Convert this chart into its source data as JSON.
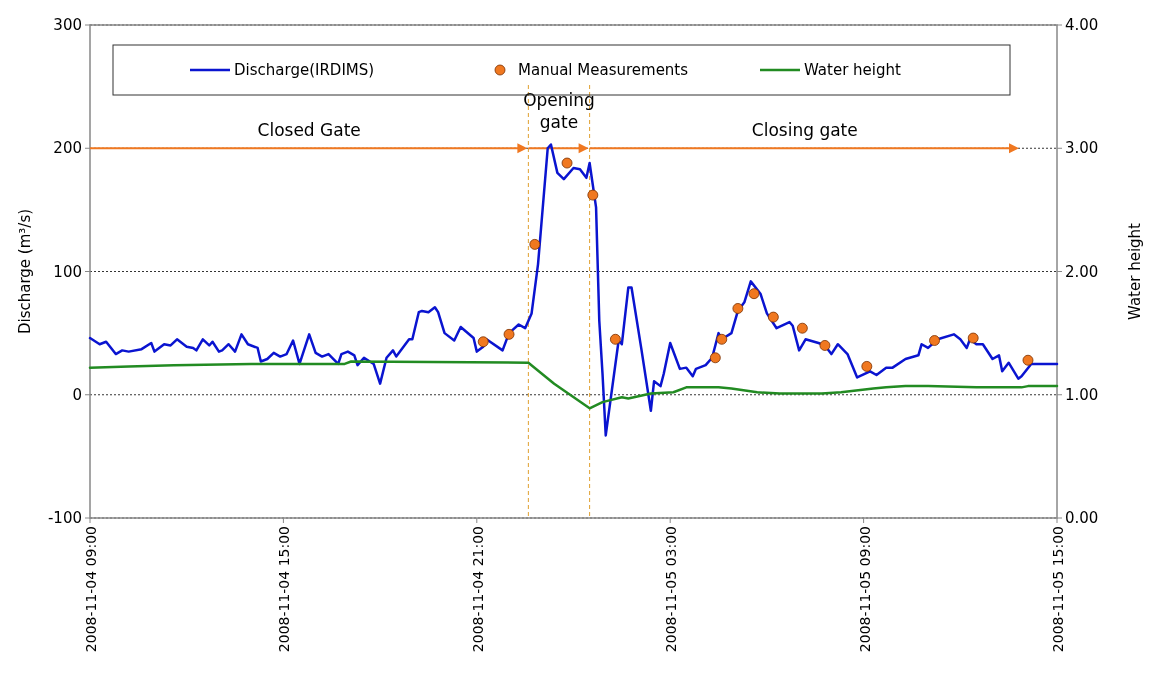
{
  "chart_data": {
    "type": "line",
    "xlim": [
      "2008-11-04T09:00",
      "2008-11-05T15:00"
    ],
    "xticks": [
      {
        "value": "2008-11-04T09:00",
        "label": "2008-11-04 09:00"
      },
      {
        "value": "2008-11-04T15:00",
        "label": "2008-11-04 15:00"
      },
      {
        "value": "2008-11-04T21:00",
        "label": "2008-11-04 21:00"
      },
      {
        "value": "2008-11-05T03:00",
        "label": "2008-11-05 03:00"
      },
      {
        "value": "2008-11-05T09:00",
        "label": "2008-11-05 09:00"
      },
      {
        "value": "2008-11-05T15:00",
        "label": "2008-11-05 15:00"
      }
    ],
    "ylim": [
      -100,
      300
    ],
    "yticks": [
      -100,
      0,
      100,
      200,
      300
    ],
    "y2lim": [
      0,
      4
    ],
    "y2ticks": [
      {
        "value": 0,
        "label": "0.00"
      },
      {
        "value": 1,
        "label": "1.00"
      },
      {
        "value": 2,
        "label": "2.00"
      },
      {
        "value": 3,
        "label": "3.00"
      },
      {
        "value": 4,
        "label": "4.00"
      }
    ],
    "ylabel": "Discharge (m³/s)",
    "y2label": "Water height",
    "grid": "y",
    "legend": "top",
    "series": [
      {
        "name": "Discharge(IRDIMS)",
        "color": "#0a14d0",
        "marker": "none",
        "x": [
          "2008-11-04T09:00",
          "2008-11-04T09:18",
          "2008-11-04T09:30",
          "2008-11-04T09:48",
          "2008-11-04T10:00",
          "2008-11-04T10:12",
          "2008-11-04T10:36",
          "2008-11-04T10:54",
          "2008-11-04T11:00",
          "2008-11-04T11:18",
          "2008-11-04T11:30",
          "2008-11-04T11:42",
          "2008-11-04T12:00",
          "2008-11-04T12:12",
          "2008-11-04T12:18",
          "2008-11-04T12:30",
          "2008-11-04T12:42",
          "2008-11-04T12:48",
          "2008-11-04T13:00",
          "2008-11-04T13:06",
          "2008-11-04T13:18",
          "2008-11-04T13:30",
          "2008-11-04T13:42",
          "2008-11-04T13:54",
          "2008-11-04T14:12",
          "2008-11-04T14:18",
          "2008-11-04T14:30",
          "2008-11-04T14:42",
          "2008-11-04T14:54",
          "2008-11-04T15:06",
          "2008-11-04T15:18",
          "2008-11-04T15:30",
          "2008-11-04T15:48",
          "2008-11-04T16:00",
          "2008-11-04T16:12",
          "2008-11-04T16:24",
          "2008-11-04T16:42",
          "2008-11-04T16:48",
          "2008-11-04T17:00",
          "2008-11-04T17:12",
          "2008-11-04T17:18",
          "2008-11-04T17:30",
          "2008-11-04T17:48",
          "2008-11-04T18:00",
          "2008-11-04T18:12",
          "2008-11-04T18:24",
          "2008-11-04T18:30",
          "2008-11-04T18:54",
          "2008-11-04T19:00",
          "2008-11-04T19:12",
          "2008-11-04T19:18",
          "2008-11-04T19:30",
          "2008-11-04T19:42",
          "2008-11-04T19:48",
          "2008-11-04T20:00",
          "2008-11-04T20:18",
          "2008-11-04T20:30",
          "2008-11-04T20:54",
          "2008-11-04T21:00",
          "2008-11-04T21:12",
          "2008-11-04T21:18",
          "2008-11-04T21:48",
          "2008-11-04T22:00",
          "2008-11-04T22:18",
          "2008-11-04T22:30",
          "2008-11-04T22:42",
          "2008-11-04T22:54",
          "2008-11-04T23:12",
          "2008-11-04T23:18",
          "2008-11-04T23:30",
          "2008-11-04T23:42",
          "2008-11-05T00:00",
          "2008-11-05T00:12",
          "2008-11-05T00:24",
          "2008-11-05T00:30",
          "2008-11-05T00:42",
          "2008-11-05T00:48",
          "2008-11-05T00:54",
          "2008-11-05T01:00",
          "2008-11-05T01:24",
          "2008-11-05T01:30",
          "2008-11-05T01:42",
          "2008-11-05T01:48",
          "2008-11-05T02:06",
          "2008-11-05T02:24",
          "2008-11-05T02:30",
          "2008-11-05T02:42",
          "2008-11-05T02:48",
          "2008-11-05T03:00",
          "2008-11-05T03:18",
          "2008-11-05T03:30",
          "2008-11-05T03:42",
          "2008-11-05T03:48",
          "2008-11-05T04:06",
          "2008-11-05T04:18",
          "2008-11-05T04:30",
          "2008-11-05T04:36",
          "2008-11-05T04:54",
          "2008-11-05T05:06",
          "2008-11-05T05:18",
          "2008-11-05T05:30",
          "2008-11-05T05:48",
          "2008-11-05T06:00",
          "2008-11-05T06:18",
          "2008-11-05T06:42",
          "2008-11-05T06:48",
          "2008-11-05T07:00",
          "2008-11-05T07:12",
          "2008-11-05T07:36",
          "2008-11-05T07:48",
          "2008-11-05T08:00",
          "2008-11-05T08:12",
          "2008-11-05T08:30",
          "2008-11-05T08:48",
          "2008-11-05T09:12",
          "2008-11-05T09:24",
          "2008-11-05T09:42",
          "2008-11-05T09:54",
          "2008-11-05T10:18",
          "2008-11-05T10:42",
          "2008-11-05T10:48",
          "2008-11-05T11:00",
          "2008-11-05T11:18",
          "2008-11-05T11:48",
          "2008-11-05T12:00",
          "2008-11-05T12:12",
          "2008-11-05T12:18",
          "2008-11-05T12:30",
          "2008-11-05T12:42",
          "2008-11-05T13:00",
          "2008-11-05T13:12",
          "2008-11-05T13:18",
          "2008-11-05T13:30",
          "2008-11-05T13:48",
          "2008-11-05T13:54",
          "2008-11-05T14:12",
          "2008-11-05T15:00"
        ],
        "values": [
          46,
          41,
          43,
          33,
          36,
          35,
          37,
          42,
          35,
          41,
          40,
          45,
          39,
          38,
          36,
          45,
          40,
          43,
          35,
          36,
          41,
          35,
          49,
          41,
          38,
          27,
          29,
          34,
          31,
          33,
          44,
          25,
          49,
          34,
          31,
          33,
          25,
          33,
          35,
          32,
          24,
          30,
          25,
          9,
          30,
          36,
          31,
          45,
          45,
          67,
          68,
          67,
          71,
          67,
          50,
          44,
          55,
          46,
          35,
          39,
          45,
          36,
          50,
          57,
          54,
          66,
          106,
          200,
          203,
          180,
          175,
          184,
          183,
          176,
          188,
          152,
          60,
          17,
          -33,
          44,
          41,
          87,
          87,
          38,
          -13,
          11,
          7,
          17,
          42,
          21,
          22,
          15,
          21,
          24,
          30,
          50,
          45,
          50,
          68,
          75,
          92,
          82,
          66,
          54,
          59,
          56,
          36,
          45,
          42,
          40,
          33,
          41,
          33,
          14,
          19,
          16,
          22,
          22,
          29,
          32,
          41,
          38,
          45,
          49,
          45,
          38,
          45,
          41,
          41,
          29,
          32,
          19,
          26,
          13,
          15,
          25,
          25
        ]
      },
      {
        "name": "Manual Measurements",
        "type": "scatter",
        "color": "#f07820",
        "marker": "circle",
        "x": [
          "2008-11-04T21:12",
          "2008-11-04T22:00",
          "2008-11-04T22:48",
          "2008-11-04T23:48",
          "2008-11-05T00:36",
          "2008-11-05T01:18",
          "2008-11-05T04:24",
          "2008-11-05T04:36",
          "2008-11-05T05:06",
          "2008-11-05T05:36",
          "2008-11-05T06:12",
          "2008-11-05T07:06",
          "2008-11-05T07:48",
          "2008-11-05T09:06",
          "2008-11-05T11:12",
          "2008-11-05T12:24",
          "2008-11-05T14:06"
        ],
        "values": [
          43,
          49,
          122,
          188,
          162,
          45,
          30,
          45,
          70,
          82,
          63,
          54,
          40,
          23,
          44,
          46,
          28
        ]
      },
      {
        "name": "Water height",
        "axis": "y2",
        "color": "#228b22",
        "marker": "none",
        "x": [
          "2008-11-04T09:00",
          "2008-11-04T10:12",
          "2008-11-04T11:36",
          "2008-11-04T14:00",
          "2008-11-04T16:54",
          "2008-11-04T17:06",
          "2008-11-04T22:36",
          "2008-11-04T23:24",
          "2008-11-05T00:30",
          "2008-11-05T00:54",
          "2008-11-05T01:30",
          "2008-11-05T01:42",
          "2008-11-05T02:24",
          "2008-11-05T03:06",
          "2008-11-05T03:30",
          "2008-11-05T04:30",
          "2008-11-05T04:54",
          "2008-11-05T05:42",
          "2008-11-05T06:24",
          "2008-11-05T07:42",
          "2008-11-05T08:18",
          "2008-11-05T09:18",
          "2008-11-05T09:42",
          "2008-11-05T10:18",
          "2008-11-05T11:00",
          "2008-11-05T12:30",
          "2008-11-05T13:54",
          "2008-11-05T14:06",
          "2008-11-05T15:00"
        ],
        "values": [
          1.22,
          1.23,
          1.24,
          1.25,
          1.25,
          1.27,
          1.26,
          1.09,
          0.89,
          0.94,
          0.98,
          0.97,
          1.01,
          1.02,
          1.06,
          1.06,
          1.05,
          1.02,
          1.01,
          1.01,
          1.02,
          1.05,
          1.06,
          1.07,
          1.07,
          1.06,
          1.06,
          1.07,
          1.07
        ]
      }
    ],
    "ref_lines": [
      {
        "axis": "x",
        "value": "2008-11-04T22:36",
        "color": "#e0a030",
        "line_style": "dashed"
      },
      {
        "axis": "x",
        "value": "2008-11-05T00:30",
        "color": "#e0a030",
        "line_style": "dashed"
      }
    ],
    "annotations": [
      "Closed Gate",
      "Opening gate",
      "Closing gate"
    ]
  }
}
